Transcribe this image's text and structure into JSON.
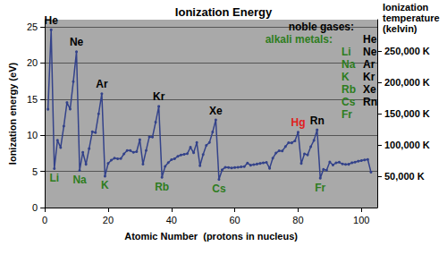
{
  "chart_data": {
    "type": "line",
    "title": "Ionization Energy",
    "xlabel": "Atomic Number  (protons in nucleus)",
    "ylabel": "Ionization energy (eV)",
    "y2label": "Ionization temperature (kelvin)",
    "x": [
      1,
      2,
      3,
      4,
      5,
      6,
      7,
      8,
      9,
      10,
      11,
      12,
      13,
      14,
      15,
      16,
      17,
      18,
      19,
      20,
      21,
      22,
      23,
      24,
      25,
      26,
      27,
      28,
      29,
      30,
      31,
      32,
      33,
      34,
      35,
      36,
      37,
      38,
      39,
      40,
      41,
      42,
      43,
      44,
      45,
      46,
      47,
      48,
      49,
      50,
      51,
      52,
      53,
      54,
      55,
      56,
      57,
      58,
      59,
      60,
      61,
      62,
      63,
      64,
      65,
      66,
      67,
      68,
      69,
      70,
      71,
      72,
      73,
      74,
      75,
      76,
      77,
      78,
      79,
      80,
      81,
      82,
      83,
      84,
      85,
      86,
      87,
      88,
      89,
      90,
      91,
      92,
      93,
      94,
      95,
      96,
      97,
      98,
      99,
      100,
      101,
      102,
      103
    ],
    "values": [
      13.6,
      24.59,
      5.39,
      9.32,
      8.3,
      11.26,
      14.53,
      13.62,
      17.42,
      21.56,
      5.14,
      7.65,
      5.99,
      8.15,
      10.49,
      10.36,
      12.97,
      15.76,
      4.34,
      6.11,
      6.56,
      6.83,
      6.75,
      6.77,
      7.43,
      7.9,
      7.88,
      7.64,
      7.73,
      9.39,
      6.0,
      7.9,
      9.79,
      9.75,
      11.81,
      14.0,
      4.18,
      5.7,
      6.22,
      6.63,
      6.76,
      7.09,
      7.28,
      7.36,
      7.46,
      8.34,
      7.58,
      8.99,
      5.79,
      7.34,
      8.61,
      9.01,
      10.45,
      12.13,
      3.89,
      5.21,
      5.58,
      5.54,
      5.47,
      5.53,
      5.58,
      5.64,
      5.67,
      6.15,
      5.86,
      5.94,
      6.02,
      6.11,
      6.18,
      6.25,
      5.43,
      6.83,
      7.55,
      7.86,
      7.83,
      8.44,
      8.97,
      8.96,
      9.23,
      10.44,
      6.11,
      7.42,
      7.29,
      8.42,
      9.3,
      10.75,
      4.07,
      5.28,
      5.17,
      6.31,
      5.89,
      6.19,
      6.27,
      6.03,
      5.97,
      5.99,
      6.2,
      6.28,
      6.42,
      6.5,
      6.58,
      6.65,
      4.9
    ],
    "color": "#33428a",
    "marker": "circle",
    "line_style": "solid",
    "xlim": [
      0,
      105
    ],
    "xticks": [
      0,
      20,
      40,
      60,
      80,
      100
    ],
    "ylim": [
      0,
      26
    ],
    "yticks": [
      0,
      5,
      10,
      15,
      20,
      25
    ],
    "y2lim": [
      0,
      300000
    ],
    "y2ticks": [
      {
        "value": 50000,
        "label": "50,000 K"
      },
      {
        "value": 100000,
        "label": "100,000 K"
      },
      {
        "value": 150000,
        "label": "150,000 K"
      },
      {
        "value": 200000,
        "label": "200,000 K"
      },
      {
        "value": 250000,
        "label": "250,000 K"
      }
    ],
    "grid": true,
    "annotations": [
      {
        "text": "He",
        "x": 2,
        "color": "#000000"
      },
      {
        "text": "Ne",
        "x": 10,
        "color": "#000000"
      },
      {
        "text": "Ar",
        "x": 18,
        "color": "#000000"
      },
      {
        "text": "Kr",
        "x": 36,
        "color": "#000000"
      },
      {
        "text": "Xe",
        "x": 54,
        "color": "#000000"
      },
      {
        "text": "Rn",
        "x": 86,
        "color": "#000000"
      },
      {
        "text": "Hg",
        "x": 80,
        "color": "#e02020"
      },
      {
        "text": "Li",
        "x": 3,
        "color": "#2e7d1e"
      },
      {
        "text": "Na",
        "x": 11,
        "color": "#2e7d1e"
      },
      {
        "text": "K",
        "x": 19,
        "color": "#2e7d1e"
      },
      {
        "text": "Rb",
        "x": 37,
        "color": "#2e7d1e"
      },
      {
        "text": "Cs",
        "x": 55,
        "color": "#2e7d1e"
      },
      {
        "text": "Fr",
        "x": 87,
        "color": "#2e7d1e"
      }
    ],
    "key": [
      {
        "title": "noble gases:",
        "color": "#000000",
        "elements": [
          "He",
          "Ne",
          "Ar",
          "Kr",
          "Xe",
          "Rn"
        ]
      },
      {
        "title": "alkali metals:",
        "color": "#2e7d1e",
        "elements": [
          "Li",
          "Na",
          "K",
          "Rb",
          "Cs",
          "Fr"
        ]
      }
    ]
  }
}
